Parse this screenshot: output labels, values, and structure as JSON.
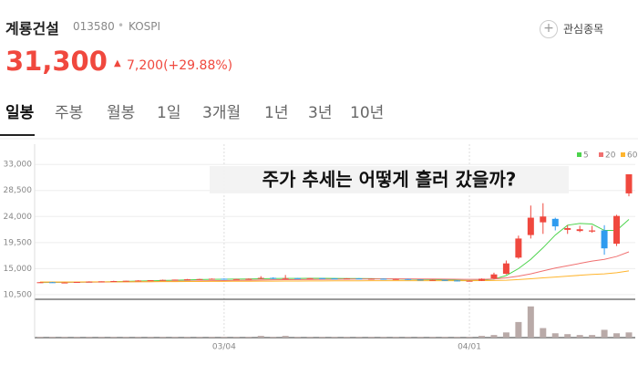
{
  "header": {
    "name": "계룡건설",
    "code": "013580",
    "market": "KOSPI",
    "price": "31,300",
    "change": "7,200(+29.88%)",
    "watch_button": "관심종목"
  },
  "tabs": [
    "일봉",
    "주봉",
    "월봉",
    "1일",
    "3개월",
    "1년",
    "3년",
    "10년"
  ],
  "chart_data": {
    "type": "candlestick",
    "annotation": "주가 추세는 어떻게 흘러 갔을까?",
    "categories": [
      null,
      null,
      null,
      null,
      null,
      null,
      null,
      null,
      null,
      null,
      null,
      null,
      null,
      null,
      null,
      "03/04",
      null,
      null,
      null,
      null,
      null,
      null,
      null,
      null,
      null,
      null,
      null,
      null,
      null,
      null,
      null,
      null,
      null,
      null,
      null,
      "04/01",
      null,
      null,
      null,
      null,
      null,
      null,
      null,
      null,
      null,
      null,
      null,
      null,
      null
    ],
    "up_color": "#f0483e",
    "down_color": "#2f9bef",
    "candles": [
      {
        "open": 12600,
        "high": 12700,
        "low": 12550,
        "close": 12650
      },
      {
        "open": 12650,
        "high": 12700,
        "low": 12600,
        "close": 12600
      },
      {
        "open": 12600,
        "high": 12650,
        "low": 12550,
        "close": 12600
      },
      {
        "open": 12600,
        "high": 12700,
        "low": 12600,
        "close": 12700
      },
      {
        "open": 12700,
        "high": 12800,
        "low": 12650,
        "close": 12750
      },
      {
        "open": 12750,
        "high": 12800,
        "low": 12700,
        "close": 12800
      },
      {
        "open": 12800,
        "high": 12900,
        "low": 12750,
        "close": 12850
      },
      {
        "open": 12850,
        "high": 12900,
        "low": 12800,
        "close": 12900
      },
      {
        "open": 12900,
        "high": 13000,
        "low": 12850,
        "close": 12950
      },
      {
        "open": 12950,
        "high": 13000,
        "low": 12900,
        "close": 13000
      },
      {
        "open": 13000,
        "high": 13100,
        "low": 12950,
        "close": 13050
      },
      {
        "open": 13050,
        "high": 13100,
        "low": 13000,
        "close": 13100
      },
      {
        "open": 13100,
        "high": 13200,
        "low": 13050,
        "close": 13150
      },
      {
        "open": 13150,
        "high": 13250,
        "low": 13100,
        "close": 13200
      },
      {
        "open": 13200,
        "high": 13300,
        "low": 13150,
        "close": 13250
      },
      {
        "open": 13250,
        "high": 13300,
        "low": 13150,
        "close": 13150
      },
      {
        "open": 13150,
        "high": 13250,
        "low": 13100,
        "close": 13200
      },
      {
        "open": 13200,
        "high": 13300,
        "low": 13150,
        "close": 13250
      },
      {
        "open": 13250,
        "high": 13700,
        "low": 13200,
        "close": 13400
      },
      {
        "open": 13400,
        "high": 13500,
        "low": 13200,
        "close": 13250
      },
      {
        "open": 13250,
        "high": 13900,
        "low": 13200,
        "close": 13350
      },
      {
        "open": 13350,
        "high": 13400,
        "low": 13250,
        "close": 13300
      },
      {
        "open": 13300,
        "high": 13400,
        "low": 13250,
        "close": 13350
      },
      {
        "open": 13350,
        "high": 13400,
        "low": 13250,
        "close": 13300
      },
      {
        "open": 13300,
        "high": 13350,
        "low": 13200,
        "close": 13250
      },
      {
        "open": 13250,
        "high": 13350,
        "low": 13200,
        "close": 13300
      },
      {
        "open": 13300,
        "high": 13350,
        "low": 13200,
        "close": 13200
      },
      {
        "open": 13200,
        "high": 13300,
        "low": 13150,
        "close": 13250
      },
      {
        "open": 13250,
        "high": 13300,
        "low": 13100,
        "close": 13150
      },
      {
        "open": 13150,
        "high": 13250,
        "low": 13100,
        "close": 13200
      },
      {
        "open": 13200,
        "high": 13250,
        "low": 13050,
        "close": 13100
      },
      {
        "open": 13100,
        "high": 13150,
        "low": 12950,
        "close": 13000
      },
      {
        "open": 13000,
        "high": 13100,
        "low": 12950,
        "close": 13050
      },
      {
        "open": 13050,
        "high": 13100,
        "low": 12900,
        "close": 12950
      },
      {
        "open": 12950,
        "high": 13000,
        "low": 12800,
        "close": 12850
      },
      {
        "open": 12850,
        "high": 12950,
        "low": 12800,
        "close": 12900
      },
      {
        "open": 12900,
        "high": 13300,
        "low": 12850,
        "close": 13250
      },
      {
        "open": 13300,
        "high": 14300,
        "low": 13200,
        "close": 14000
      },
      {
        "open": 14100,
        "high": 16400,
        "low": 14000,
        "close": 15900
      },
      {
        "open": 16900,
        "high": 20700,
        "low": 16700,
        "close": 20200
      },
      {
        "open": 20800,
        "high": 25900,
        "low": 20200,
        "close": 23800
      },
      {
        "open": 23000,
        "high": 26300,
        "low": 21000,
        "close": 24000
      },
      {
        "open": 23600,
        "high": 23800,
        "low": 21600,
        "close": 22300
      },
      {
        "open": 21700,
        "high": 22500,
        "low": 21000,
        "close": 22000
      },
      {
        "open": 21500,
        "high": 22400,
        "low": 21300,
        "close": 21800
      },
      {
        "open": 21400,
        "high": 22400,
        "low": 21200,
        "close": 21600
      },
      {
        "open": 21600,
        "high": 22500,
        "low": 17400,
        "close": 18500
      },
      {
        "open": 19300,
        "high": 24300,
        "low": 18900,
        "close": 24100
      },
      {
        "open": 28000,
        "high": 31300,
        "low": 27500,
        "close": 31300
      }
    ],
    "series": [
      {
        "name": "5",
        "color": "#4cd34c",
        "values": [
          12600,
          12620,
          12630,
          12650,
          12670,
          12700,
          12740,
          12790,
          12850,
          12900,
          12950,
          13000,
          13050,
          13100,
          13150,
          13170,
          13190,
          13210,
          13250,
          13280,
          13300,
          13310,
          13330,
          13330,
          13300,
          13290,
          13280,
          13260,
          13230,
          13210,
          13170,
          13130,
          13100,
          13060,
          13000,
          12950,
          13000,
          13200,
          13800,
          15000,
          16600,
          18600,
          20800,
          22500,
          22800,
          22700,
          21600,
          21600,
          23500
        ]
      },
      {
        "name": "20",
        "color": "#f07070",
        "values": [
          12650,
          12650,
          12660,
          12660,
          12670,
          12680,
          12700,
          12720,
          12740,
          12760,
          12790,
          12820,
          12850,
          12880,
          12910,
          12940,
          12970,
          13000,
          13030,
          13060,
          13090,
          13110,
          13130,
          13150,
          13170,
          13190,
          13200,
          13210,
          13220,
          13220,
          13220,
          13210,
          13200,
          13180,
          13160,
          13140,
          13150,
          13200,
          13400,
          13700,
          14100,
          14600,
          15100,
          15500,
          15900,
          16300,
          16600,
          17100,
          17900
        ]
      },
      {
        "name": "60",
        "color": "#ffb52e",
        "values": [
          12700,
          12700,
          12700,
          12700,
          12710,
          12710,
          12720,
          12720,
          12730,
          12740,
          12750,
          12760,
          12770,
          12780,
          12790,
          12800,
          12810,
          12820,
          12830,
          12840,
          12850,
          12860,
          12870,
          12880,
          12890,
          12900,
          12900,
          12910,
          12910,
          12920,
          12920,
          12920,
          12920,
          12920,
          12920,
          12920,
          12930,
          12950,
          13000,
          13100,
          13250,
          13400,
          13550,
          13700,
          13850,
          14000,
          14100,
          14300,
          14600
        ]
      }
    ],
    "volume": [
      1,
      1,
      1,
      1,
      1,
      1,
      1,
      1,
      1,
      1,
      1,
      1,
      1,
      1,
      1,
      1,
      1,
      1,
      2,
      1,
      2,
      1,
      1,
      1,
      1,
      1,
      1,
      1,
      1,
      1,
      1,
      1,
      1,
      1,
      1,
      1,
      2,
      3,
      6,
      18,
      36,
      11,
      5,
      4,
      3,
      3,
      9,
      5,
      6
    ],
    "volume_color": "#b9aaa8",
    "vlim": [
      0,
      40
    ],
    "ylim": [
      9700,
      36500
    ],
    "yticks": [
      {
        "value": 10500,
        "label": "10,500"
      },
      {
        "value": 15000,
        "label": "15,000"
      },
      {
        "value": 19500,
        "label": "19,500"
      },
      {
        "value": 24000,
        "label": "24,000"
      },
      {
        "value": 28500,
        "label": "28,500"
      },
      {
        "value": 33000,
        "label": "33,000"
      }
    ],
    "grid": true
  }
}
